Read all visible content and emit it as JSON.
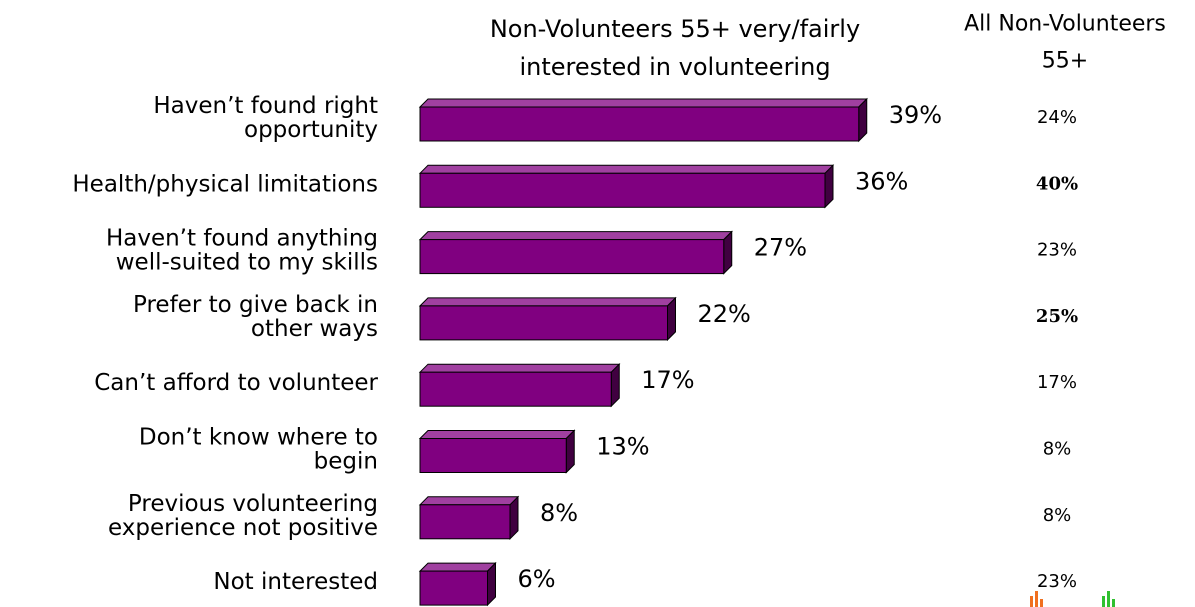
{
  "chart_data": {
    "type": "bar",
    "orientation": "horizontal",
    "three_d": true,
    "title": "Non-Volunteers 55+ very/fairly\ninterested in volunteering",
    "categories": [
      "Haven’t found right\nopportunity",
      "Health/physical limitations",
      "Haven’t found anything\nwell-suited to my skills",
      "Prefer to give back in\nother ways",
      "Can’t afford to volunteer",
      "Don’t know where to\nbegin",
      "Previous volunteering\nexperience not positive",
      "Not interested"
    ],
    "series": [
      {
        "name": "Non-Volunteers 55+ very/fairly interested in volunteering",
        "color": "#800080",
        "values": [
          39,
          36,
          27,
          22,
          17,
          13,
          8,
          6
        ],
        "value_labels": [
          "39%",
          "36%",
          "27%",
          "22%",
          "17%",
          "13%",
          "8%",
          "6%"
        ]
      }
    ],
    "comparison": {
      "title": "All Non-Volunteers\n55+",
      "values": [
        24,
        40,
        23,
        25,
        17,
        8,
        8,
        23
      ],
      "value_labels": [
        "24%",
        "40%",
        "23%",
        "25%",
        "17%",
        "8%",
        "8%",
        "23%"
      ],
      "bold": [
        false,
        true,
        false,
        true,
        false,
        false,
        false,
        false
      ]
    }
  }
}
